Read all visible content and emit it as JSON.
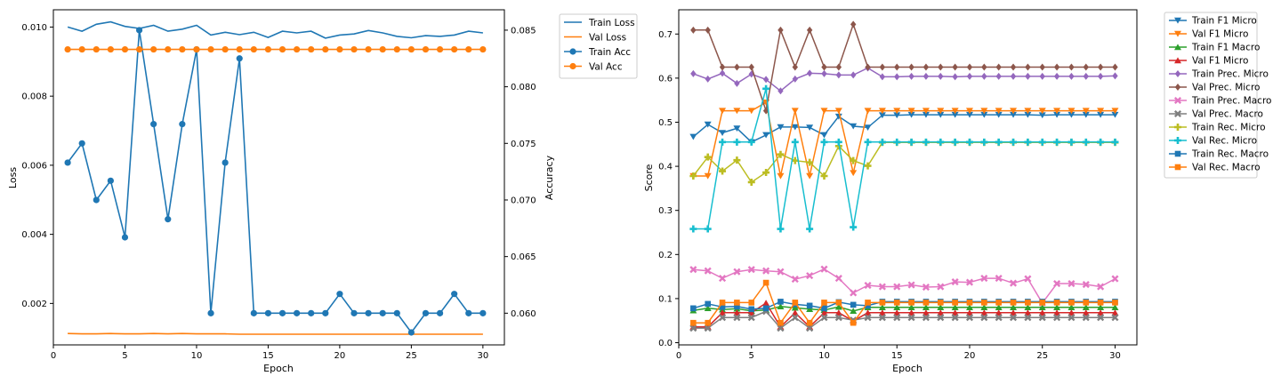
{
  "charts": [
    {
      "type": "line",
      "xlabel": "Epoch",
      "ylabel_left": "Loss",
      "ylabel_right": "Accuracy"
    },
    {
      "type": "line",
      "xlabel": "Epoch",
      "ylabel": "Score"
    }
  ],
  "chart_data": [
    {
      "type": "line",
      "x": [
        1,
        2,
        3,
        4,
        5,
        6,
        7,
        8,
        9,
        10,
        11,
        12,
        13,
        14,
        15,
        16,
        17,
        18,
        19,
        20,
        21,
        22,
        23,
        24,
        25,
        26,
        27,
        28,
        29,
        30
      ],
      "xlabel": "Epoch",
      "ylabel": "Loss",
      "y2label": "Accuracy",
      "xlim": [
        0,
        31.5
      ],
      "ylim": [
        0.0008,
        0.0105
      ],
      "y2lim": [
        0.0572,
        0.0868
      ],
      "xticks": [
        0,
        5,
        10,
        15,
        20,
        25,
        30
      ],
      "yticks": [
        0.002,
        0.004,
        0.006,
        0.008,
        0.01
      ],
      "y2ticks": [
        0.06,
        0.065,
        0.07,
        0.075,
        0.08,
        0.085
      ],
      "legend": "outside-right",
      "grid": false,
      "series": [
        {
          "name": "Train Loss",
          "axis": "left",
          "color": "#1f77b4",
          "marker": "none",
          "values": [
            0.01,
            0.00988,
            0.01008,
            0.01015,
            0.01002,
            0.00996,
            0.01005,
            0.00988,
            0.00994,
            0.01005,
            0.00977,
            0.00985,
            0.00978,
            0.00985,
            0.0097,
            0.00988,
            0.00983,
            0.00988,
            0.00968,
            0.00977,
            0.0098,
            0.0099,
            0.00983,
            0.00973,
            0.00969,
            0.00975,
            0.00973,
            0.00977,
            0.00988,
            0.00983
          ]
        },
        {
          "name": "Val Loss",
          "axis": "left",
          "color": "#ff7f0e",
          "marker": "none",
          "values": [
            0.00113,
            0.00112,
            0.00112,
            0.00113,
            0.00112,
            0.00112,
            0.00113,
            0.00112,
            0.00113,
            0.00112,
            0.00112,
            0.00112,
            0.00111,
            0.00111,
            0.00111,
            0.00111,
            0.00111,
            0.00111,
            0.00111,
            0.00111,
            0.00111,
            0.00111,
            0.00111,
            0.00111,
            0.00111,
            0.00111,
            0.00111,
            0.00111,
            0.00111,
            0.00111
          ]
        },
        {
          "name": "Train Acc",
          "axis": "right",
          "color": "#1f77b4",
          "marker": "circle",
          "values": [
            0.0733,
            0.075,
            0.07,
            0.0717,
            0.0667,
            0.085,
            0.0767,
            0.0683,
            0.0767,
            0.0833,
            0.06,
            0.0733,
            0.0825,
            0.06,
            0.06,
            0.06,
            0.06,
            0.06,
            0.06,
            0.0617,
            0.06,
            0.06,
            0.06,
            0.06,
            0.0583,
            0.06,
            0.06,
            0.0617,
            0.06,
            0.06
          ]
        },
        {
          "name": "Val Acc",
          "axis": "right",
          "color": "#ff7f0e",
          "marker": "circle",
          "values": [
            0.0833,
            0.0833,
            0.0833,
            0.0833,
            0.0833,
            0.0833,
            0.0833,
            0.0833,
            0.0833,
            0.0833,
            0.0833,
            0.0833,
            0.0833,
            0.0833,
            0.0833,
            0.0833,
            0.0833,
            0.0833,
            0.0833,
            0.0833,
            0.0833,
            0.0833,
            0.0833,
            0.0833,
            0.0833,
            0.0833,
            0.0833,
            0.0833,
            0.0833,
            0.0833
          ]
        }
      ]
    },
    {
      "type": "line",
      "x": [
        1,
        2,
        3,
        4,
        5,
        6,
        7,
        8,
        9,
        10,
        11,
        12,
        13,
        14,
        15,
        16,
        17,
        18,
        19,
        20,
        21,
        22,
        23,
        24,
        25,
        26,
        27,
        28,
        29,
        30
      ],
      "xlabel": "Epoch",
      "ylabel": "Score",
      "xlim": [
        0,
        31.5
      ],
      "ylim": [
        -0.005,
        0.755
      ],
      "xticks": [
        0,
        5,
        10,
        15,
        20,
        25,
        30
      ],
      "yticks": [
        0.0,
        0.1,
        0.2,
        0.3,
        0.4,
        0.5,
        0.6,
        0.7
      ],
      "legend": "outside-right",
      "grid": false,
      "series": [
        {
          "name": "Train F1 Micro",
          "color": "#1f77b4",
          "marker": "tri_down",
          "values": [
            0.467,
            0.495,
            0.476,
            0.486,
            0.455,
            0.471,
            0.489,
            0.489,
            0.488,
            0.471,
            0.513,
            0.491,
            0.488,
            0.516,
            0.516,
            0.517,
            0.517,
            0.517,
            0.517,
            0.517,
            0.517,
            0.517,
            0.517,
            0.517,
            0.516,
            0.517,
            0.517,
            0.517,
            0.517,
            0.517
          ]
        },
        {
          "name": "Val F1 Micro",
          "color": "#ff7f0e",
          "marker": "tri_down",
          "values": [
            0.378,
            0.378,
            0.526,
            0.526,
            0.526,
            0.545,
            0.378,
            0.526,
            0.378,
            0.526,
            0.526,
            0.385,
            0.526,
            0.526,
            0.526,
            0.526,
            0.526,
            0.526,
            0.526,
            0.526,
            0.526,
            0.526,
            0.526,
            0.526,
            0.526,
            0.526,
            0.526,
            0.526,
            0.526,
            0.526
          ]
        },
        {
          "name": "Train F1 Macro",
          "color": "#2ca02c",
          "marker": "tri_up",
          "values": [
            0.073,
            0.078,
            0.075,
            0.077,
            0.072,
            0.074,
            0.082,
            0.079,
            0.076,
            0.074,
            0.081,
            0.072,
            0.08,
            0.08,
            0.08,
            0.08,
            0.08,
            0.08,
            0.08,
            0.08,
            0.08,
            0.08,
            0.08,
            0.08,
            0.08,
            0.08,
            0.08,
            0.08,
            0.08,
            0.08
          ]
        },
        {
          "name": "Val F1 Micro",
          "color": "#d62728",
          "marker": "tri_up",
          "values": [
            0.036,
            0.036,
            0.068,
            0.068,
            0.068,
            0.09,
            0.036,
            0.068,
            0.036,
            0.068,
            0.068,
            0.049,
            0.068,
            0.068,
            0.068,
            0.068,
            0.068,
            0.068,
            0.068,
            0.068,
            0.068,
            0.068,
            0.068,
            0.068,
            0.068,
            0.068,
            0.068,
            0.068,
            0.068,
            0.068
          ]
        },
        {
          "name": "Train Prec. Micro",
          "color": "#9467bd",
          "marker": "diamond",
          "values": [
            0.61,
            0.598,
            0.611,
            0.588,
            0.609,
            0.597,
            0.571,
            0.598,
            0.611,
            0.61,
            0.607,
            0.607,
            0.623,
            0.603,
            0.603,
            0.604,
            0.604,
            0.604,
            0.603,
            0.604,
            0.604,
            0.604,
            0.604,
            0.604,
            0.604,
            0.604,
            0.604,
            0.604,
            0.604,
            0.605
          ]
        },
        {
          "name": "Val Prec. Micro",
          "color": "#8c564b",
          "marker": "diamond",
          "values": [
            0.709,
            0.709,
            0.625,
            0.625,
            0.625,
            0.526,
            0.709,
            0.625,
            0.709,
            0.625,
            0.625,
            0.722,
            0.625,
            0.625,
            0.625,
            0.625,
            0.625,
            0.625,
            0.625,
            0.625,
            0.625,
            0.625,
            0.625,
            0.625,
            0.625,
            0.625,
            0.625,
            0.625,
            0.625,
            0.625
          ]
        },
        {
          "name": "Train Prec. Macro",
          "color": "#e377c2",
          "marker": "x",
          "values": [
            0.166,
            0.163,
            0.146,
            0.161,
            0.166,
            0.163,
            0.161,
            0.144,
            0.152,
            0.167,
            0.146,
            0.113,
            0.13,
            0.127,
            0.127,
            0.131,
            0.126,
            0.127,
            0.138,
            0.137,
            0.146,
            0.146,
            0.135,
            0.145,
            0.09,
            0.134,
            0.134,
            0.132,
            0.127,
            0.145
          ]
        },
        {
          "name": "Val Prec. Macro",
          "color": "#7f7f7f",
          "marker": "x",
          "values": [
            0.033,
            0.033,
            0.057,
            0.057,
            0.057,
            0.071,
            0.033,
            0.057,
            0.033,
            0.057,
            0.057,
            0.051,
            0.057,
            0.057,
            0.057,
            0.057,
            0.057,
            0.057,
            0.057,
            0.057,
            0.057,
            0.057,
            0.057,
            0.057,
            0.057,
            0.057,
            0.057,
            0.057,
            0.057,
            0.057
          ]
        },
        {
          "name": "Train Rec. Micro",
          "color": "#bcbd22",
          "marker": "plus",
          "values": [
            0.378,
            0.421,
            0.389,
            0.414,
            0.364,
            0.386,
            0.427,
            0.413,
            0.409,
            0.378,
            0.446,
            0.413,
            0.401,
            0.454,
            0.454,
            0.454,
            0.454,
            0.454,
            0.454,
            0.454,
            0.454,
            0.454,
            0.454,
            0.454,
            0.454,
            0.454,
            0.454,
            0.454,
            0.454,
            0.454
          ]
        },
        {
          "name": "Val Rec. Micro",
          "color": "#17becf",
          "marker": "plus",
          "values": [
            0.258,
            0.258,
            0.455,
            0.455,
            0.455,
            0.576,
            0.258,
            0.455,
            0.258,
            0.455,
            0.455,
            0.262,
            0.455,
            0.455,
            0.455,
            0.455,
            0.455,
            0.455,
            0.455,
            0.455,
            0.455,
            0.455,
            0.455,
            0.455,
            0.455,
            0.455,
            0.455,
            0.455,
            0.455,
            0.455
          ]
        },
        {
          "name": "Train Rec. Macro",
          "color": "#1f77b4",
          "marker": "square",
          "values": [
            0.078,
            0.088,
            0.081,
            0.082,
            0.076,
            0.078,
            0.093,
            0.087,
            0.084,
            0.078,
            0.092,
            0.086,
            0.084,
            0.093,
            0.093,
            0.093,
            0.093,
            0.093,
            0.093,
            0.093,
            0.093,
            0.093,
            0.093,
            0.093,
            0.093,
            0.093,
            0.093,
            0.093,
            0.093,
            0.093
          ]
        },
        {
          "name": "Val Rec. Macro",
          "color": "#ff7f0e",
          "marker": "square",
          "values": [
            0.045,
            0.045,
            0.091,
            0.091,
            0.091,
            0.136,
            0.045,
            0.091,
            0.045,
            0.091,
            0.091,
            0.045,
            0.091,
            0.091,
            0.091,
            0.091,
            0.091,
            0.091,
            0.091,
            0.091,
            0.091,
            0.091,
            0.091,
            0.091,
            0.091,
            0.091,
            0.091,
            0.091,
            0.091,
            0.091
          ]
        }
      ]
    }
  ]
}
